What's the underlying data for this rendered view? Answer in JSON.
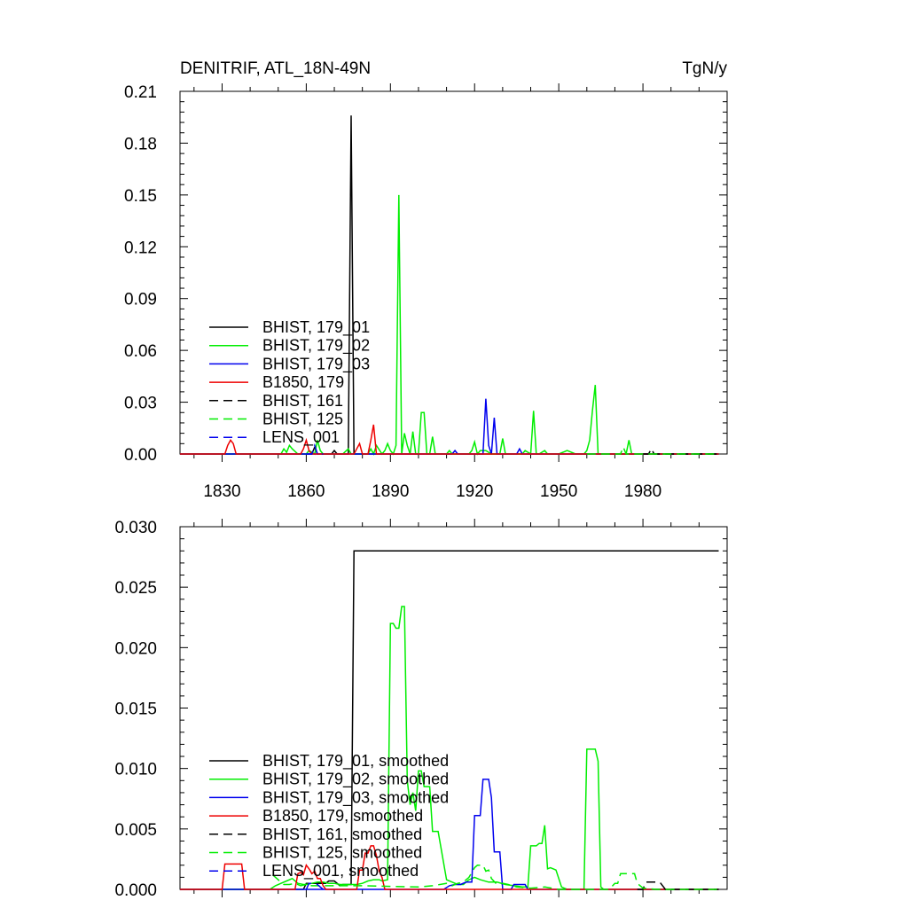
{
  "figure": {
    "title_left": "DENITRIF, ATL_18N-49N",
    "title_right": "TgN/y"
  },
  "chart_data": [
    {
      "type": "line",
      "panel": "top",
      "xlim": [
        1815,
        2010
      ],
      "ylim": [
        0,
        0.21
      ],
      "xticks": [
        1830,
        1860,
        1890,
        1920,
        1950,
        1980
      ],
      "xtick_labels": [
        "1830",
        "1860",
        "1890",
        "1920",
        "1950",
        "1980"
      ],
      "yticks": [
        0,
        0.03,
        0.06,
        0.09,
        0.12,
        0.15,
        0.18,
        0.21
      ],
      "ytick_labels": [
        "0.00",
        "0.03",
        "0.06",
        "0.09",
        "0.12",
        "0.15",
        "0.18",
        "0.21"
      ],
      "legend_position": "lower-left",
      "series": [
        {
          "name": "BHIST, 179_01",
          "color": "#000000",
          "dash": "solid",
          "x": [
            1815,
            1862,
            1863,
            1864,
            1867,
            1869,
            1870,
            1871,
            1873,
            1874,
            1875,
            1876,
            1877,
            1878,
            1880,
            2007
          ],
          "y": [
            0,
            0,
            0.004,
            0,
            0,
            0,
            0.002,
            0,
            0,
            0,
            0,
            0.196,
            0,
            0,
            0,
            0
          ]
        },
        {
          "name": "BHIST, 179_02",
          "color": "#00ee00",
          "dash": "solid",
          "x": [
            1815,
            1849,
            1851,
            1852,
            1853,
            1854,
            1855,
            1857,
            1858,
            1860,
            1861,
            1863,
            1864,
            1865,
            1866,
            1872,
            1873,
            1875,
            1876,
            1878,
            1880,
            1882,
            1883,
            1884,
            1885,
            1887,
            1888,
            1889,
            1890,
            1891,
            1892,
            1893,
            1894,
            1895,
            1896,
            1897,
            1898,
            1899,
            1900,
            1901,
            1902,
            1903,
            1904,
            1905,
            1906,
            1910,
            1911,
            1912,
            1913,
            1914,
            1918,
            1919,
            1920,
            1921,
            1922,
            1924,
            1926,
            1928,
            1929,
            1930,
            1931,
            1933,
            1937,
            1938,
            1940,
            1941,
            1942,
            1943,
            1945,
            1946,
            1947,
            1948,
            1950,
            1953,
            1956,
            1958,
            1959,
            1960,
            1961,
            1962,
            1963,
            1964,
            1965,
            1970,
            1971,
            1972,
            1973,
            1974,
            1975,
            1976,
            1977,
            2007
          ],
          "y": [
            0,
            0,
            0,
            0.003,
            0.001,
            0.005,
            0.003,
            0,
            0,
            0,
            0.002,
            0,
            0.008,
            0.002,
            0,
            0,
            0,
            0.003,
            0,
            0,
            0,
            0,
            0.003,
            0,
            0.005,
            0,
            0.002,
            0.006,
            0.002,
            0,
            0.005,
            0.15,
            0,
            0.012,
            0.005,
            0,
            0.013,
            0,
            0,
            0.024,
            0.024,
            0,
            0,
            0.01,
            0,
            0,
            0.002,
            0,
            0,
            0,
            0,
            0.002,
            0.007,
            0,
            0.002,
            0.002,
            0,
            0,
            0,
            0.009,
            0,
            0,
            0,
            0.002,
            0,
            0.025,
            0,
            0,
            0.002,
            0,
            0,
            0,
            0,
            0.002,
            0,
            0,
            0,
            0.002,
            0.008,
            0.025,
            0.04,
            0,
            0,
            0,
            0,
            0,
            0,
            0,
            0.008,
            0,
            0,
            0
          ]
        },
        {
          "name": "BHIST, 179_03",
          "color": "#0000ee",
          "dash": "solid",
          "x": [
            1815,
            1912,
            1913,
            1914,
            1920,
            1922,
            1923,
            1924,
            1925,
            1926,
            1927,
            1928,
            1933,
            1935,
            1936,
            1937,
            1939,
            2007
          ],
          "y": [
            0,
            0,
            0.002,
            0,
            0,
            0,
            0,
            0.032,
            0.005,
            0,
            0.021,
            0,
            0,
            0,
            0.003,
            0,
            0,
            0
          ]
        },
        {
          "name": "B1850, 179",
          "color": "#ee0000",
          "dash": "solid",
          "x": [
            1815,
            1831,
            1832,
            1833,
            1834,
            1835,
            1836,
            1858,
            1859,
            1860,
            1861,
            1862,
            1863,
            1877,
            1878,
            1879,
            1880,
            1882,
            1883,
            1884,
            1885,
            1886,
            1887,
            1888,
            1889,
            1890,
            2007
          ],
          "y": [
            0,
            0,
            0.005,
            0.008,
            0.006,
            0,
            0,
            0,
            0.003,
            0.008,
            0.002,
            0,
            0,
            0,
            0.003,
            0.006,
            0,
            0,
            0.008,
            0.017,
            0,
            0,
            0,
            0,
            0,
            0,
            0
          ]
        },
        {
          "name": "BHIST, 161",
          "color": "#000000",
          "dash": "dash",
          "x": [
            1980,
            1982,
            1983,
            1984,
            1985,
            2007
          ],
          "y": [
            0,
            0,
            0.003,
            0,
            0,
            0
          ]
        },
        {
          "name": "BHIST, 125",
          "color": "#00ee00",
          "dash": "dash",
          "x": [
            1960,
            1970,
            1972,
            1973,
            1974,
            1975,
            1977,
            2007
          ],
          "y": [
            0,
            0,
            0,
            0.004,
            0,
            0,
            0,
            0
          ]
        },
        {
          "name": "LENS_001",
          "color": "#0000ee",
          "dash": "dash",
          "x": [
            1860,
            1862,
            1863,
            1864,
            1866
          ],
          "y": [
            0,
            0,
            0.005,
            0,
            0
          ]
        }
      ]
    },
    {
      "type": "line",
      "panel": "bottom",
      "xlim": [
        1815,
        2010
      ],
      "ylim": [
        0,
        0.03
      ],
      "xticks": [
        1830,
        1860,
        1890,
        1920,
        1950,
        1980
      ],
      "yticks": [
        0,
        0.005,
        0.01,
        0.015,
        0.02,
        0.025,
        0.03
      ],
      "ytick_labels": [
        "0.000",
        "0.005",
        "0.010",
        "0.015",
        "0.020",
        "0.025",
        "0.030"
      ],
      "legend_position": "lower-left",
      "series": [
        {
          "name": "BHIST, 179_01, smoothed",
          "color": "#000000",
          "dash": "solid",
          "x": [
            1815,
            1859,
            1860,
            1861,
            1867,
            1868,
            1869,
            1870,
            1871,
            1872,
            1873,
            1874,
            1875,
            1876,
            1877,
            1878,
            2007
          ],
          "y": [
            0,
            0,
            0.0005,
            0.0005,
            0.0005,
            0.0007,
            0.0007,
            0.0007,
            0.0005,
            0.0003,
            0.0004,
            0.0004,
            0.0004,
            0.0004,
            0.028,
            0.028,
            0.028
          ]
        },
        {
          "name": "BHIST, 179_02, smoothed",
          "color": "#00ee00",
          "dash": "solid",
          "x": [
            1815,
            1847,
            1849,
            1851,
            1853,
            1855,
            1857,
            1859,
            1860,
            1862,
            1864,
            1866,
            1868,
            1870,
            1872,
            1874,
            1876,
            1878,
            1880,
            1882,
            1884,
            1886,
            1887,
            1889,
            1890,
            1891,
            1892,
            1893,
            1894,
            1895,
            1896,
            1897,
            1898,
            1899,
            1900,
            1901,
            1902,
            1903,
            1904,
            1905,
            1906,
            1907,
            1910,
            1912,
            1914,
            1916,
            1918,
            1920,
            1922,
            1925,
            1928,
            1931,
            1934,
            1937,
            1939,
            1940,
            1941,
            1942,
            1943,
            1944,
            1945,
            1946,
            1947,
            1948,
            1949,
            1951,
            1953,
            1955,
            1957,
            1959,
            1960,
            1961,
            1962,
            1963,
            1964,
            1965,
            1966,
            1968,
            1970,
            1975,
            2007
          ],
          "y": [
            0,
            0,
            0.0003,
            0.0005,
            0.0007,
            0.0009,
            0.0005,
            0.0004,
            0.0004,
            0.0005,
            0.0006,
            0.0006,
            0.0005,
            0.0005,
            0.0004,
            0.0004,
            0.0004,
            0.0004,
            0.0005,
            0.0007,
            0.0008,
            0.0008,
            0.0007,
            0.0008,
            0.022,
            0.022,
            0.0216,
            0.0216,
            0.0234,
            0.0234,
            0.009,
            0.007,
            0.008,
            0.0065,
            0.0098,
            0.0098,
            0.0085,
            0.0085,
            0.0085,
            0.0048,
            0.0048,
            0.0048,
            0.0008,
            0.0006,
            0.0004,
            0.0004,
            0.0008,
            0.001,
            0.0008,
            0.0006,
            0.0006,
            0.0004,
            0.0003,
            0.0002,
            0.0002,
            0.0036,
            0.0036,
            0.0036,
            0.0038,
            0.0038,
            0.0053,
            0.0017,
            0.0018,
            0.0017,
            0.0016,
            0.0002,
            0,
            0,
            0,
            0,
            0.0116,
            0.0116,
            0.0116,
            0.0116,
            0.0106,
            0.0002,
            0,
            0,
            0,
            0,
            0
          ]
        },
        {
          "name": "BHIST, 179_03, smoothed",
          "color": "#0000ee",
          "dash": "solid",
          "x": [
            1815,
            1909,
            1911,
            1913,
            1915,
            1917,
            1918,
            1919,
            1920,
            1921,
            1922,
            1923,
            1924,
            1925,
            1926,
            1927,
            1928,
            1929,
            1930,
            1931,
            1932,
            1933,
            1934,
            1935,
            1936,
            1937,
            1938,
            1939,
            2007
          ],
          "y": [
            0,
            0,
            0.0003,
            0.0004,
            0.0004,
            0.0006,
            0.0006,
            0.0006,
            0.0061,
            0.0061,
            0.0061,
            0.0091,
            0.0091,
            0.0091,
            0.0076,
            0.0031,
            0.0031,
            0.0031,
            0,
            0,
            0,
            0,
            0.0004,
            0.0004,
            0.0004,
            0.0004,
            0.0004,
            0,
            0
          ]
        },
        {
          "name": "B1850, 179, smoothed",
          "color": "#ee0000",
          "dash": "solid",
          "x": [
            1815,
            1826,
            1827,
            1830,
            1831,
            1832,
            1833,
            1834,
            1835,
            1836,
            1837,
            1838,
            1839,
            1856,
            1857,
            1858,
            1859,
            1860,
            1861,
            1862,
            1863,
            1864,
            1865,
            1866,
            1867,
            1868,
            1870,
            1878,
            1879,
            1880,
            1881,
            1882,
            1883,
            1884,
            1885,
            1886,
            1887,
            1888,
            1889,
            1890,
            1891,
            2007
          ],
          "y": [
            0,
            0,
            0,
            0,
            0.0021,
            0.0021,
            0.0021,
            0.0021,
            0.0021,
            0.0021,
            0.0021,
            0,
            0,
            0,
            0.0013,
            0.0014,
            0.0012,
            0.002,
            0.0017,
            0.0013,
            0.0015,
            0.0009,
            0.0009,
            0.0003,
            0,
            0,
            0,
            0,
            0.0016,
            0.0016,
            0.003,
            0.003,
            0.0036,
            0.0036,
            0.0028,
            0.0015,
            0.001,
            0,
            0,
            0,
            0,
            0
          ]
        },
        {
          "name": "BHIST, 161, smoothed",
          "color": "#000000",
          "dash": "dash",
          "x": [
            1978,
            1980,
            1981,
            1982,
            1983,
            1984,
            1985,
            1986,
            1988,
            1990,
            1995,
            2000,
            2007
          ],
          "y": [
            0,
            0,
            0.0006,
            0.0006,
            0.0006,
            0.0006,
            0.0006,
            0.0006,
            0,
            0,
            0,
            0,
            0
          ]
        },
        {
          "name": "BHIST, 125, smoothed",
          "color": "#00ee00",
          "dash": "dash",
          "x": [
            1848,
            1850,
            1852,
            1854,
            1856,
            1858,
            1860,
            1862,
            1870,
            1880,
            1900,
            1905,
            1910,
            1912,
            1914,
            1916,
            1918,
            1920,
            1921,
            1922,
            1923,
            1924,
            1925,
            1926,
            1928,
            1930,
            1932,
            1935,
            1940,
            1945,
            1950,
            1955,
            1960,
            1965,
            1968,
            1970,
            1971,
            1972,
            1973,
            1974,
            1975,
            1976,
            1977,
            1978,
            1980,
            1985,
            2007
          ],
          "y": [
            0.0012,
            0.0008,
            0.0004,
            0.0004,
            0.0005,
            0.0003,
            0.0004,
            0.0003,
            0.0003,
            0.0003,
            0.0002,
            0.0003,
            0.0005,
            0.0003,
            0.0005,
            0.0006,
            0.001,
            0.0018,
            0.002,
            0.002,
            0.002,
            0.0015,
            0.0016,
            0.0009,
            0.0004,
            0.0005,
            0.0004,
            0.0002,
            0.0001,
            0.0002,
            0,
            0,
            0,
            0,
            0,
            0.0005,
            0.0005,
            0.0013,
            0.0013,
            0.0013,
            0.0013,
            0.0013,
            0.0013,
            0.0005,
            0.0001,
            0,
            0
          ]
        },
        {
          "name": "LENS_001, smoothed",
          "color": "#0000ee",
          "dash": "dash",
          "x": [
            1860,
            1861,
            1862,
            1863,
            1864,
            1865,
            1866
          ],
          "y": [
            0,
            0.0005,
            0.0005,
            0.0005,
            0.0004,
            0.0002,
            0
          ]
        }
      ]
    }
  ]
}
